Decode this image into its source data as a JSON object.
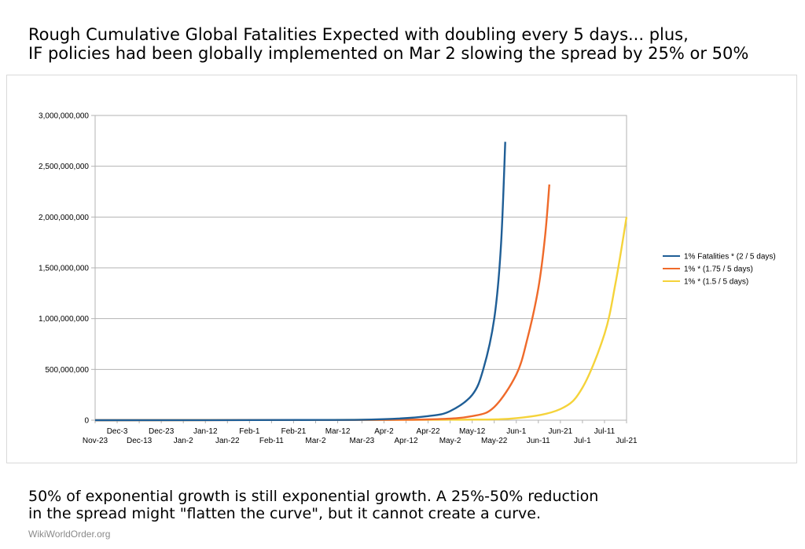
{
  "title_line1": "Rough Cumulative Global Fatalities Expected with doubling every 5 days... plus,",
  "title_line2": "IF policies had been globally implemented on Mar 2 slowing the spread by 25% or 50%",
  "caption_line1": "50% of exponential growth is still exponential growth. A 25%-50% reduction",
  "caption_line2": "in the spread might \"flatten the curve\", but it cannot create a curve.",
  "footer": "WikiWorldOrder.org",
  "chart_data": {
    "type": "line",
    "xlabel": "",
    "ylabel": "",
    "ylim": [
      0,
      3000000000
    ],
    "y_ticks": [
      "0",
      "500,000,000",
      "1,000,000,000",
      "1,500,000,000",
      "2,000,000,000",
      "2,500,000,000",
      "3,000,000,000"
    ],
    "x_tick_labels_upper": [
      "Dec-3",
      "Dec-23",
      "Jan-12",
      "Feb-1",
      "Feb-21",
      "Mar-12",
      "Apr-2",
      "Apr-22",
      "May-12",
      "Jun-1",
      "Jun-21",
      "Jul-11"
    ],
    "x_tick_labels_lower": [
      "Nov-23",
      "Dec-13",
      "Jan-2",
      "Jan-22",
      "Feb-11",
      "Mar-2",
      "Mar-23",
      "Apr-12",
      "May-2",
      "May-22",
      "Jun-11",
      "Jul-1",
      "Jul-21"
    ],
    "x_range": [
      "Nov-23",
      "Jul-21"
    ],
    "grid": true,
    "legend_position": "right",
    "series": [
      {
        "name": "1% Fatalities * (2 / 5 days)",
        "color": "#1f5e96",
        "x": [
          "Nov-23",
          "Mar-2",
          "Apr-2",
          "Apr-22",
          "May-2",
          "May-12",
          "May-17",
          "May-22",
          "May-25",
          "May-27"
        ],
        "values": [
          0,
          2000000,
          10000000,
          40000000,
          90000000,
          250000000,
          500000000,
          1000000000,
          1700000000,
          2740000000
        ]
      },
      {
        "name": "1% * (1.75 / 5 days)",
        "color": "#ef6a2a",
        "x": [
          "Nov-23",
          "Mar-2",
          "Apr-22",
          "May-12",
          "May-22",
          "Jun-1",
          "Jun-6",
          "Jun-11",
          "Jun-14",
          "Jun-16"
        ],
        "values": [
          0,
          2000000,
          8000000,
          40000000,
          130000000,
          450000000,
          800000000,
          1300000000,
          1800000000,
          2320000000
        ]
      },
      {
        "name": "1% *  (1.5 / 5 days)",
        "color": "#f5d33a",
        "x": [
          "Nov-23",
          "Mar-2",
          "May-2",
          "Jun-1",
          "Jun-21",
          "Jul-1",
          "Jul-11",
          "Jul-16",
          "Jul-21"
        ],
        "values": [
          0,
          2000000,
          5000000,
          20000000,
          110000000,
          320000000,
          850000000,
          1350000000,
          2000000000
        ]
      }
    ]
  }
}
